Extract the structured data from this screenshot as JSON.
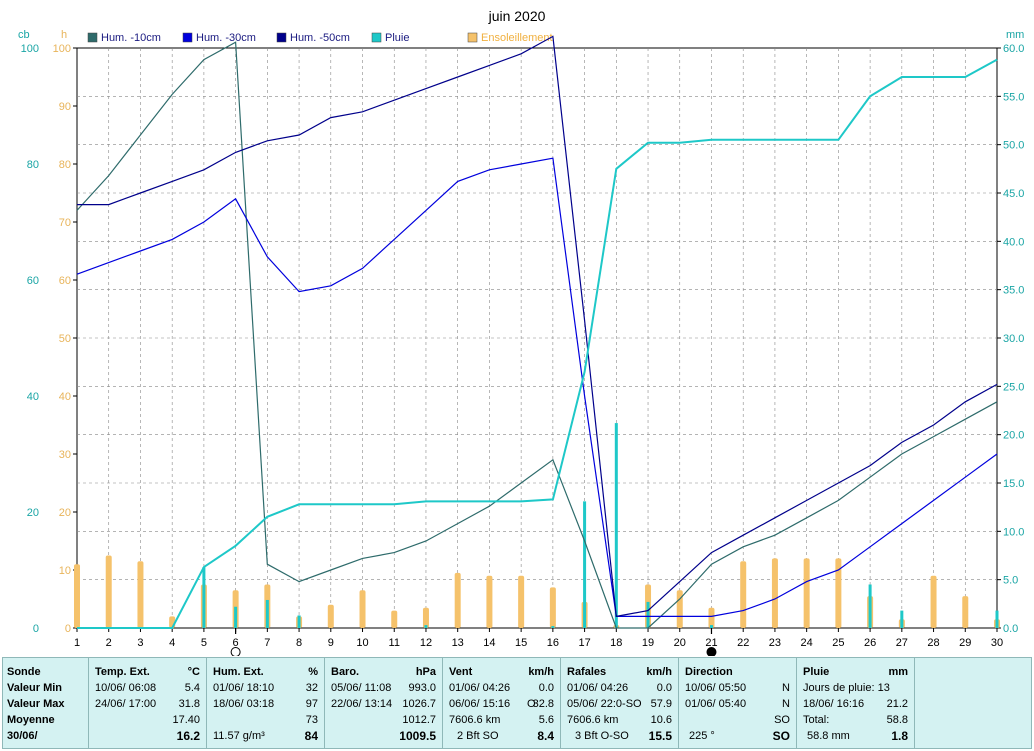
{
  "chart_data": {
    "type": "line",
    "title": "juin 2020",
    "left_axis": {
      "unit_outer": "cb",
      "unit_inner": "h",
      "range": [
        0,
        100
      ],
      "ticks": [
        0,
        20,
        40,
        60,
        80,
        100
      ]
    },
    "hours_axis": {
      "range": [
        0,
        100
      ],
      "ticks": [
        0,
        10,
        20,
        30,
        40,
        50,
        60,
        70,
        80,
        90,
        100
      ],
      "color": "#e8b45a"
    },
    "right_axis": {
      "unit": "mm",
      "range": [
        0,
        60
      ],
      "ticks": [
        "0.0",
        "5.0",
        "10.0",
        "15.0",
        "20.0",
        "25.0",
        "30.0",
        "35.0",
        "40.0",
        "45.0",
        "50.0",
        "55.0",
        "60.0"
      ],
      "color": "#1aa5a5"
    },
    "x": {
      "range": [
        1,
        30
      ],
      "ticks": [
        1,
        2,
        3,
        4,
        5,
        6,
        7,
        8,
        9,
        10,
        11,
        12,
        13,
        14,
        15,
        16,
        17,
        18,
        19,
        20,
        21,
        22,
        23,
        24,
        25,
        26,
        27,
        28,
        29,
        30
      ]
    },
    "grid": true,
    "legend_position": "top",
    "series": [
      {
        "name": "Hum. -10cm",
        "color": "#2e6b6b",
        "axis": "cb",
        "x": [
          1,
          2,
          3,
          4,
          5,
          6,
          7,
          8,
          9,
          10,
          11,
          12,
          13,
          14,
          15,
          16,
          17,
          18,
          19,
          20,
          21,
          22,
          23,
          24,
          25,
          26,
          27,
          28,
          29,
          30
        ],
        "values": [
          72,
          78,
          85,
          92,
          98,
          101,
          11,
          8,
          10,
          12,
          13,
          15,
          18,
          21,
          25,
          29,
          15,
          0,
          0,
          5,
          11,
          14,
          16,
          19,
          22,
          26,
          30,
          33,
          36,
          39
        ]
      },
      {
        "name": "Hum. -30cm",
        "color": "#0000dd",
        "axis": "cb",
        "x": [
          1,
          2,
          3,
          4,
          5,
          6,
          7,
          8,
          9,
          10,
          11,
          12,
          13,
          14,
          15,
          16,
          17,
          18,
          19,
          20,
          21,
          22,
          23,
          24,
          25,
          26,
          27,
          28,
          29,
          30
        ],
        "values": [
          61,
          63,
          65,
          67,
          70,
          74,
          64,
          58,
          59,
          62,
          67,
          72,
          77,
          79,
          80,
          81,
          40,
          2,
          2,
          2,
          2,
          3,
          5,
          8,
          10,
          14,
          18,
          22,
          26,
          30
        ]
      },
      {
        "name": "Hum. -50cm",
        "color": "#00008b",
        "axis": "cb",
        "x": [
          1,
          2,
          3,
          4,
          5,
          6,
          7,
          8,
          9,
          10,
          11,
          12,
          13,
          14,
          15,
          16,
          17,
          18,
          19,
          20,
          21,
          22,
          23,
          24,
          25,
          26,
          27,
          28,
          29,
          30
        ],
        "values": [
          73,
          73,
          75,
          77,
          79,
          82,
          84,
          85,
          88,
          89,
          91,
          93,
          95,
          97,
          99,
          102,
          53,
          2,
          3,
          8,
          13,
          16,
          19,
          22,
          25,
          28,
          32,
          35,
          39,
          42
        ]
      },
      {
        "name": "Pluie",
        "color": "#1ec8c8",
        "axis": "mm",
        "x": [
          1,
          2,
          3,
          4,
          5,
          6,
          7,
          8,
          9,
          10,
          11,
          12,
          13,
          14,
          15,
          16,
          17,
          18,
          19,
          20,
          21,
          22,
          23,
          24,
          25,
          26,
          27,
          28,
          29,
          30
        ],
        "values": [
          0,
          0,
          0,
          0,
          6.3,
          8.5,
          11.5,
          12.8,
          12.8,
          12.8,
          12.8,
          13.1,
          13.1,
          13.1,
          13.1,
          13.3,
          26.5,
          47.5,
          50.2,
          50.2,
          50.5,
          50.5,
          50.5,
          50.5,
          50.5,
          55.0,
          57.0,
          57.0,
          57.0,
          58.8
        ]
      }
    ],
    "daily_rain_mm": {
      "name": "Pluie",
      "color": "#1ec8c8",
      "x": [
        1,
        2,
        3,
        4,
        5,
        6,
        7,
        8,
        9,
        10,
        11,
        12,
        13,
        14,
        15,
        16,
        17,
        18,
        19,
        20,
        21,
        22,
        23,
        24,
        25,
        26,
        27,
        28,
        29,
        30
      ],
      "values": [
        0,
        0,
        0,
        0,
        6.3,
        2.2,
        2.9,
        1.3,
        0,
        0,
        0,
        0.3,
        0,
        0,
        0,
        0.2,
        13.1,
        21.2,
        2.7,
        0,
        0.3,
        0,
        0,
        0,
        0,
        4.5,
        1.8,
        0,
        0,
        1.8
      ]
    },
    "sunshine_hours": {
      "name": "Ensoleillement",
      "color": "#f5c26b",
      "x": [
        1,
        2,
        3,
        4,
        5,
        6,
        7,
        8,
        9,
        10,
        11,
        12,
        13,
        14,
        15,
        16,
        17,
        18,
        19,
        20,
        21,
        22,
        23,
        24,
        25,
        26,
        27,
        28,
        29,
        30
      ],
      "values": [
        11.0,
        12.5,
        11.5,
        2.0,
        7.5,
        6.5,
        7.5,
        2.0,
        4.0,
        6.5,
        3.0,
        3.5,
        9.5,
        9.0,
        9.0,
        7.0,
        4.5,
        0.5,
        7.5,
        6.5,
        3.5,
        11.5,
        12.0,
        12.0,
        12.0,
        5.5,
        1.5,
        9.0,
        5.5,
        1.5
      ]
    },
    "moon_markers": [
      {
        "x": 6,
        "phase": "full-moon-icon"
      },
      {
        "x": 21,
        "phase": "new-moon-icon"
      }
    ]
  },
  "stats": {
    "rows": {
      "col_labels": [
        "Sonde",
        "Valeur Min",
        "Valeur Max",
        "Moyenne",
        "30/06/"
      ]
    },
    "temp": {
      "title": "Temp. Ext.",
      "unit": "°C",
      "min_date": "10/06/  06:08",
      "min_val": "5.4",
      "max_date": "24/06/  17:00",
      "max_val": "31.8",
      "avg": "17.40",
      "current": "16.2"
    },
    "hum": {
      "title": "Hum. Ext.",
      "unit": "%",
      "min_date": "01/06/  18:10",
      "min_val": "32",
      "max_date": "18/06/  03:18",
      "max_val": "97",
      "avg": "73",
      "cur_extra": "11.57 g/m³",
      "current": "84"
    },
    "baro": {
      "title": "Baro.",
      "unit": "hPa",
      "min_date": "05/06/  11:08",
      "min_val": "993.0",
      "max_date": "22/06/  13:14",
      "max_val": "1026.7",
      "avg": "1012.7",
      "current": "1009.5"
    },
    "vent": {
      "title": "Vent",
      "unit": "km/h",
      "min_date": "01/06/  04:26",
      "min_val": "0.0",
      "max_date": "06/06/  15:16",
      "max_dir": "O",
      "max_val": "32.8",
      "avg_extra": "7606.6 km",
      "avg": "5.6",
      "cur_extra": "2 Bft SO",
      "current": "8.4"
    },
    "rafales": {
      "title": "Rafales",
      "unit": "km/h",
      "min_date": "01/06/  04:26",
      "min_val": "0.0",
      "max_date": "05/06/  22:0-SO",
      "max_val": "57.9",
      "avg_extra": "7606.6 km",
      "avg": "10.6",
      "cur_extra": "3 Bft O-SO",
      "current": "15.5"
    },
    "direction": {
      "title": "Direction",
      "min_date": "10/06/  05:50",
      "min_val": "N",
      "max_date": "01/06/  05:40",
      "max_val": "N",
      "avg": "SO",
      "cur_extra": "225 °",
      "current": "SO"
    },
    "pluie": {
      "title": "Pluie",
      "unit": "mm",
      "days_label": "Jours de pluie: 13",
      "max_date": "18/06/  16:16",
      "max_val": "21.2",
      "total_label": "Total:",
      "total_val": "58.8",
      "cur_extra": "58.8 mm",
      "current": "1.8"
    }
  }
}
